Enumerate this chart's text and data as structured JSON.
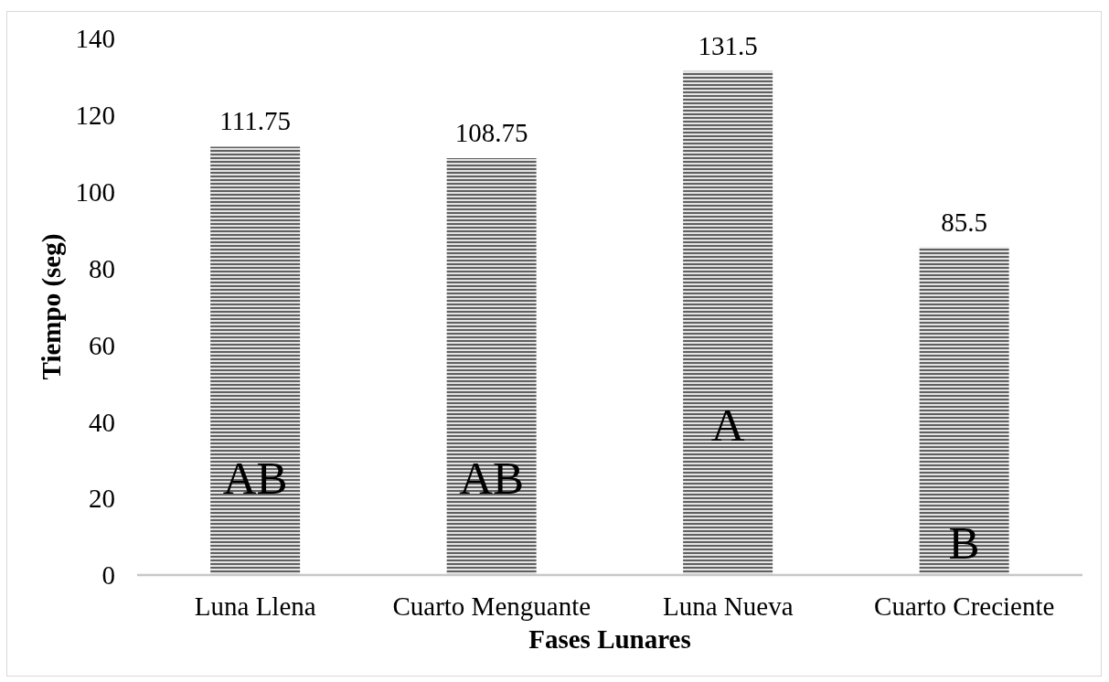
{
  "chart_data": {
    "type": "bar",
    "xlabel": "Fases Lunares",
    "ylabel": "Tiempo (seg)",
    "categories": [
      "Luna Llena",
      "Cuarto Menguante",
      "Luna Nueva",
      "Cuarto Creciente"
    ],
    "values": [
      111.75,
      108.75,
      131.5,
      85.5
    ],
    "color": "#606060",
    "ylim": [
      0,
      140
    ],
    "yticks": [
      0,
      20,
      40,
      60,
      80,
      100,
      120,
      140
    ],
    "data_labels": true,
    "annotations": [
      "AB",
      "AB",
      "A",
      "B"
    ]
  }
}
